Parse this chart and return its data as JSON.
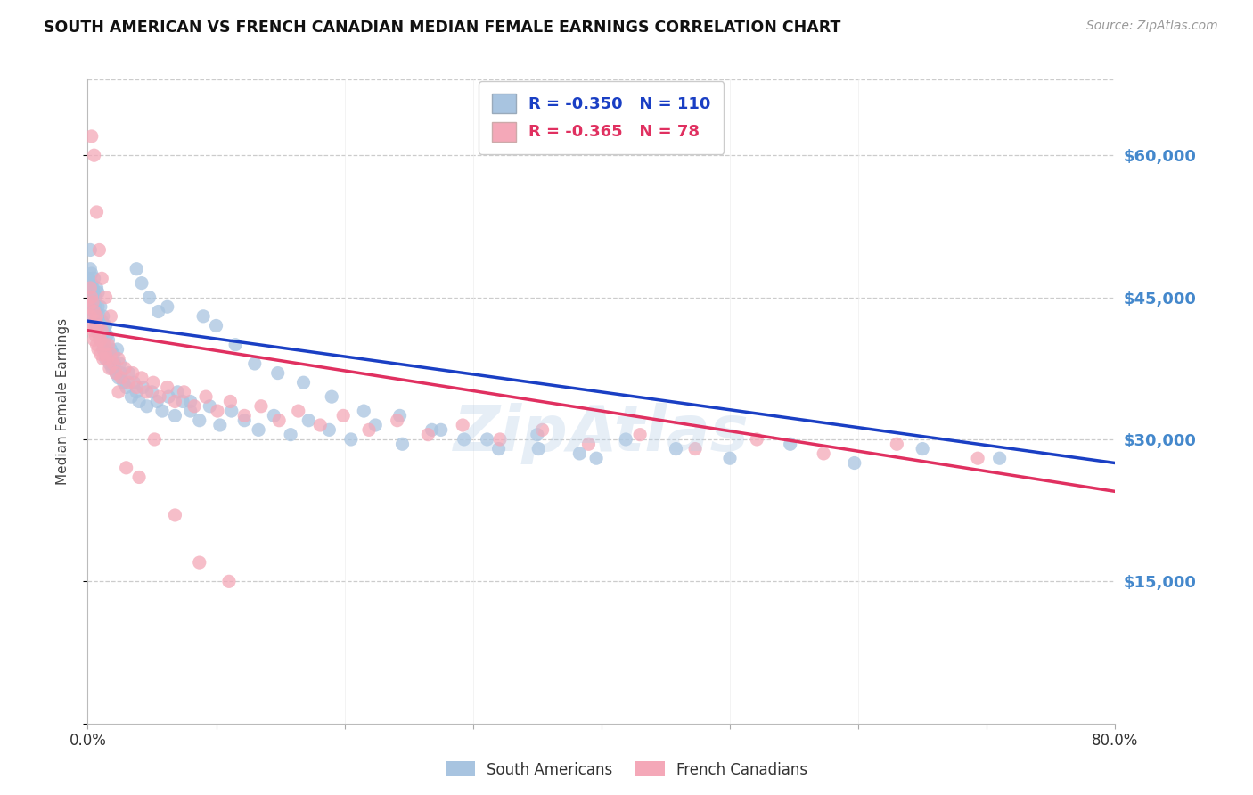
{
  "title": "SOUTH AMERICAN VS FRENCH CANADIAN MEDIAN FEMALE EARNINGS CORRELATION CHART",
  "source": "Source: ZipAtlas.com",
  "ylabel": "Median Female Earnings",
  "yticks": [
    0,
    15000,
    30000,
    45000,
    60000
  ],
  "ytick_labels": [
    "",
    "$15,000",
    "$30,000",
    "$45,000",
    "$60,000"
  ],
  "xmin": 0.0,
  "xmax": 0.8,
  "ymin": 0,
  "ymax": 68000,
  "blue_R": -0.35,
  "blue_N": 110,
  "pink_R": -0.365,
  "pink_N": 78,
  "blue_color": "#A8C4E0",
  "pink_color": "#F4A8B8",
  "blue_line_color": "#1a3fc4",
  "pink_line_color": "#e03060",
  "legend_label_blue": "South Americans",
  "legend_label_pink": "French Canadians",
  "watermark": "ZipAtlas",
  "right_label_color": "#4488CC",
  "blue_trend_x0": 0.0,
  "blue_trend_y0": 42500,
  "blue_trend_x1": 0.8,
  "blue_trend_y1": 27500,
  "pink_trend_x0": 0.0,
  "pink_trend_y0": 41500,
  "pink_trend_x1": 0.8,
  "pink_trend_y1": 24500,
  "blue_scatter_x": [
    0.001,
    0.001,
    0.002,
    0.002,
    0.002,
    0.003,
    0.003,
    0.003,
    0.004,
    0.004,
    0.004,
    0.005,
    0.005,
    0.005,
    0.006,
    0.006,
    0.006,
    0.007,
    0.007,
    0.007,
    0.008,
    0.008,
    0.008,
    0.009,
    0.009,
    0.01,
    0.01,
    0.01,
    0.011,
    0.011,
    0.012,
    0.012,
    0.013,
    0.013,
    0.014,
    0.014,
    0.015,
    0.016,
    0.016,
    0.017,
    0.018,
    0.019,
    0.02,
    0.021,
    0.022,
    0.023,
    0.024,
    0.025,
    0.026,
    0.028,
    0.03,
    0.032,
    0.034,
    0.036,
    0.038,
    0.04,
    0.043,
    0.046,
    0.05,
    0.054,
    0.058,
    0.063,
    0.068,
    0.074,
    0.08,
    0.087,
    0.095,
    0.103,
    0.112,
    0.122,
    0.133,
    0.145,
    0.158,
    0.172,
    0.188,
    0.205,
    0.224,
    0.245,
    0.268,
    0.293,
    0.32,
    0.35,
    0.383,
    0.419,
    0.458,
    0.5,
    0.547,
    0.597,
    0.65,
    0.71,
    0.038,
    0.042,
    0.048,
    0.055,
    0.062,
    0.07,
    0.08,
    0.09,
    0.1,
    0.115,
    0.13,
    0.148,
    0.168,
    0.19,
    0.215,
    0.243,
    0.275,
    0.311,
    0.351,
    0.396
  ],
  "blue_scatter_y": [
    47000,
    46000,
    50000,
    44000,
    48000,
    46500,
    43000,
    47500,
    45000,
    44500,
    46000,
    45500,
    43500,
    47000,
    42000,
    45000,
    44000,
    43500,
    41500,
    46000,
    44000,
    42500,
    45500,
    41000,
    43000,
    42000,
    44000,
    40500,
    42500,
    41000,
    43000,
    39500,
    41500,
    40000,
    42000,
    38500,
    41000,
    39000,
    40500,
    38000,
    39500,
    37500,
    39000,
    38000,
    37000,
    39500,
    36500,
    38000,
    37000,
    36000,
    35500,
    37000,
    34500,
    36000,
    35000,
    34000,
    35500,
    33500,
    35000,
    34000,
    33000,
    34500,
    32500,
    34000,
    33000,
    32000,
    33500,
    31500,
    33000,
    32000,
    31000,
    32500,
    30500,
    32000,
    31000,
    30000,
    31500,
    29500,
    31000,
    30000,
    29000,
    30500,
    28500,
    30000,
    29000,
    28000,
    29500,
    27500,
    29000,
    28000,
    48000,
    46500,
    45000,
    43500,
    44000,
    35000,
    34000,
    43000,
    42000,
    40000,
    38000,
    37000,
    36000,
    34500,
    33000,
    32500,
    31000,
    30000,
    29000,
    28000
  ],
  "pink_scatter_x": [
    0.001,
    0.002,
    0.002,
    0.003,
    0.003,
    0.004,
    0.004,
    0.005,
    0.005,
    0.006,
    0.006,
    0.007,
    0.007,
    0.008,
    0.008,
    0.009,
    0.01,
    0.01,
    0.011,
    0.012,
    0.013,
    0.014,
    0.015,
    0.016,
    0.017,
    0.018,
    0.02,
    0.022,
    0.024,
    0.026,
    0.029,
    0.032,
    0.035,
    0.038,
    0.042,
    0.046,
    0.051,
    0.056,
    0.062,
    0.068,
    0.075,
    0.083,
    0.092,
    0.101,
    0.111,
    0.122,
    0.135,
    0.149,
    0.164,
    0.181,
    0.199,
    0.219,
    0.241,
    0.265,
    0.292,
    0.321,
    0.354,
    0.39,
    0.43,
    0.473,
    0.521,
    0.573,
    0.63,
    0.693,
    0.003,
    0.005,
    0.007,
    0.009,
    0.011,
    0.014,
    0.018,
    0.024,
    0.03,
    0.04,
    0.052,
    0.068,
    0.087,
    0.11
  ],
  "pink_scatter_y": [
    44000,
    46000,
    43000,
    45000,
    42000,
    44500,
    41500,
    43500,
    40500,
    42500,
    41000,
    43000,
    40000,
    42000,
    39500,
    41000,
    40500,
    39000,
    41500,
    38500,
    40000,
    39000,
    38500,
    40000,
    37500,
    39000,
    38000,
    37000,
    38500,
    36500,
    37500,
    36000,
    37000,
    35500,
    36500,
    35000,
    36000,
    34500,
    35500,
    34000,
    35000,
    33500,
    34500,
    33000,
    34000,
    32500,
    33500,
    32000,
    33000,
    31500,
    32500,
    31000,
    32000,
    30500,
    31500,
    30000,
    31000,
    29500,
    30500,
    29000,
    30000,
    28500,
    29500,
    28000,
    62000,
    60000,
    54000,
    50000,
    47000,
    45000,
    43000,
    35000,
    27000,
    26000,
    30000,
    22000,
    17000,
    15000
  ]
}
